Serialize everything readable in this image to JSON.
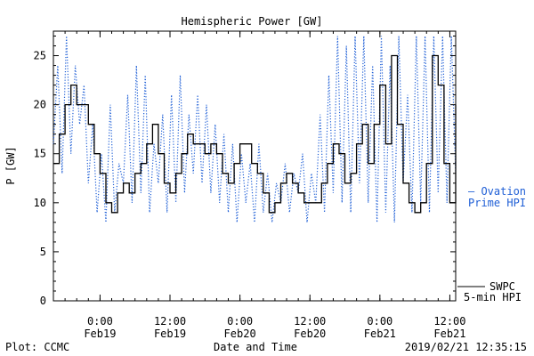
{
  "chart_data": {
    "type": "line",
    "title": "Hemispheric Power [GW]",
    "xlabel": "Date and Time",
    "ylabel": "P [GW]",
    "ylim": [
      0,
      27.5
    ],
    "yticks": [
      0,
      5,
      10,
      15,
      20,
      25
    ],
    "xlim": [
      "2019-02-18T16:00",
      "2019-02-21T13:00"
    ],
    "xticks": [
      {
        "x": "2019-02-19T00:00",
        "line1": "0:00",
        "line2": "Feb19"
      },
      {
        "x": "2019-02-19T12:00",
        "line1": "12:00",
        "line2": "Feb19"
      },
      {
        "x": "2019-02-20T00:00",
        "line1": "0:00",
        "line2": "Feb20"
      },
      {
        "x": "2019-02-20T12:00",
        "line1": "12:00",
        "line2": "Feb20"
      },
      {
        "x": "2019-02-21T00:00",
        "line1": "0:00",
        "line2": "Feb21"
      },
      {
        "x": "2019-02-21T12:00",
        "line1": "12:00",
        "line2": "Feb21"
      }
    ],
    "grid": false,
    "legend_position": "right",
    "series": [
      {
        "name": "SWPC 5-min HPI",
        "legend_line1": "SWPC",
        "legend_line2": "5-min HPI",
        "color": "#000000",
        "style": "solid",
        "points": [
          [
            "2019-02-18T16:00",
            14
          ],
          [
            "2019-02-18T17:00",
            17
          ],
          [
            "2019-02-18T18:00",
            20
          ],
          [
            "2019-02-18T19:00",
            22
          ],
          [
            "2019-02-18T20:00",
            20
          ],
          [
            "2019-02-18T21:00",
            20
          ],
          [
            "2019-02-18T22:00",
            18
          ],
          [
            "2019-02-18T23:00",
            15
          ],
          [
            "2019-02-19T00:00",
            13
          ],
          [
            "2019-02-19T01:00",
            10
          ],
          [
            "2019-02-19T02:00",
            9
          ],
          [
            "2019-02-19T03:00",
            11
          ],
          [
            "2019-02-19T04:00",
            12
          ],
          [
            "2019-02-19T05:00",
            11
          ],
          [
            "2019-02-19T06:00",
            13
          ],
          [
            "2019-02-19T07:00",
            14
          ],
          [
            "2019-02-19T08:00",
            16
          ],
          [
            "2019-02-19T09:00",
            18
          ],
          [
            "2019-02-19T10:00",
            15
          ],
          [
            "2019-02-19T11:00",
            12
          ],
          [
            "2019-02-19T12:00",
            11
          ],
          [
            "2019-02-19T13:00",
            13
          ],
          [
            "2019-02-19T14:00",
            15
          ],
          [
            "2019-02-19T15:00",
            17
          ],
          [
            "2019-02-19T16:00",
            16
          ],
          [
            "2019-02-19T17:00",
            16
          ],
          [
            "2019-02-19T18:00",
            15
          ],
          [
            "2019-02-19T19:00",
            16
          ],
          [
            "2019-02-19T20:00",
            15
          ],
          [
            "2019-02-19T21:00",
            13
          ],
          [
            "2019-02-19T22:00",
            12
          ],
          [
            "2019-02-19T23:00",
            14
          ],
          [
            "2019-02-20T00:00",
            16
          ],
          [
            "2019-02-20T01:00",
            16
          ],
          [
            "2019-02-20T02:00",
            14
          ],
          [
            "2019-02-20T03:00",
            13
          ],
          [
            "2019-02-20T04:00",
            11
          ],
          [
            "2019-02-20T05:00",
            9
          ],
          [
            "2019-02-20T06:00",
            10
          ],
          [
            "2019-02-20T07:00",
            12
          ],
          [
            "2019-02-20T08:00",
            13
          ],
          [
            "2019-02-20T09:00",
            12
          ],
          [
            "2019-02-20T10:00",
            11
          ],
          [
            "2019-02-20T11:00",
            10
          ],
          [
            "2019-02-20T12:00",
            10
          ],
          [
            "2019-02-20T13:00",
            10
          ],
          [
            "2019-02-20T14:00",
            12
          ],
          [
            "2019-02-20T15:00",
            14
          ],
          [
            "2019-02-20T16:00",
            16
          ],
          [
            "2019-02-20T17:00",
            15
          ],
          [
            "2019-02-20T18:00",
            12
          ],
          [
            "2019-02-20T19:00",
            13
          ],
          [
            "2019-02-20T20:00",
            16
          ],
          [
            "2019-02-20T21:00",
            18
          ],
          [
            "2019-02-20T22:00",
            14
          ],
          [
            "2019-02-20T23:00",
            18
          ],
          [
            "2019-02-21T00:00",
            22
          ],
          [
            "2019-02-21T01:00",
            16
          ],
          [
            "2019-02-21T02:00",
            25
          ],
          [
            "2019-02-21T03:00",
            18
          ],
          [
            "2019-02-21T04:00",
            12
          ],
          [
            "2019-02-21T05:00",
            10
          ],
          [
            "2019-02-21T06:00",
            9
          ],
          [
            "2019-02-21T07:00",
            10
          ],
          [
            "2019-02-21T08:00",
            14
          ],
          [
            "2019-02-21T09:00",
            25
          ],
          [
            "2019-02-21T10:00",
            22
          ],
          [
            "2019-02-21T11:00",
            14
          ],
          [
            "2019-02-21T12:00",
            10
          ],
          [
            "2019-02-21T13:00",
            20
          ]
        ]
      },
      {
        "name": "Ovation Prime HPI",
        "legend_line1": "— Ovation",
        "legend_line2": "Prime HPI",
        "color": "#1f5fd6",
        "style": "dotted",
        "points": [
          [
            "2019-02-18T16:00",
            16
          ],
          [
            "2019-02-18T16:45",
            24
          ],
          [
            "2019-02-18T17:30",
            13
          ],
          [
            "2019-02-18T18:15",
            27
          ],
          [
            "2019-02-18T19:00",
            15
          ],
          [
            "2019-02-18T19:45",
            24
          ],
          [
            "2019-02-18T20:30",
            18
          ],
          [
            "2019-02-18T21:15",
            22
          ],
          [
            "2019-02-18T22:00",
            12
          ],
          [
            "2019-02-18T22:45",
            18
          ],
          [
            "2019-02-18T23:30",
            9
          ],
          [
            "2019-02-19T00:15",
            15
          ],
          [
            "2019-02-19T01:00",
            8
          ],
          [
            "2019-02-19T01:45",
            20
          ],
          [
            "2019-02-19T02:30",
            9
          ],
          [
            "2019-02-19T03:15",
            14
          ],
          [
            "2019-02-19T04:00",
            12
          ],
          [
            "2019-02-19T04:45",
            21
          ],
          [
            "2019-02-19T05:30",
            10
          ],
          [
            "2019-02-19T06:15",
            24
          ],
          [
            "2019-02-19T07:00",
            11
          ],
          [
            "2019-02-19T07:45",
            23
          ],
          [
            "2019-02-19T08:30",
            9
          ],
          [
            "2019-02-19T09:15",
            16
          ],
          [
            "2019-02-19T10:00",
            12
          ],
          [
            "2019-02-19T10:45",
            19
          ],
          [
            "2019-02-19T11:30",
            9
          ],
          [
            "2019-02-19T12:15",
            21
          ],
          [
            "2019-02-19T13:00",
            10
          ],
          [
            "2019-02-19T13:45",
            23
          ],
          [
            "2019-02-19T14:30",
            11
          ],
          [
            "2019-02-19T15:15",
            19
          ],
          [
            "2019-02-19T16:00",
            13
          ],
          [
            "2019-02-19T16:45",
            21
          ],
          [
            "2019-02-19T17:30",
            12
          ],
          [
            "2019-02-19T18:15",
            20
          ],
          [
            "2019-02-19T19:00",
            11
          ],
          [
            "2019-02-19T19:45",
            18
          ],
          [
            "2019-02-19T20:30",
            10
          ],
          [
            "2019-02-19T21:15",
            17
          ],
          [
            "2019-02-19T22:00",
            9
          ],
          [
            "2019-02-19T22:45",
            16
          ],
          [
            "2019-02-19T23:30",
            8
          ],
          [
            "2019-02-20T00:15",
            15
          ],
          [
            "2019-02-20T01:00",
            10
          ],
          [
            "2019-02-20T01:45",
            14
          ],
          [
            "2019-02-20T02:30",
            8
          ],
          [
            "2019-02-20T03:15",
            16
          ],
          [
            "2019-02-20T04:00",
            9
          ],
          [
            "2019-02-20T04:45",
            13
          ],
          [
            "2019-02-20T05:30",
            8
          ],
          [
            "2019-02-20T06:15",
            12
          ],
          [
            "2019-02-20T07:00",
            10
          ],
          [
            "2019-02-20T07:45",
            14
          ],
          [
            "2019-02-20T08:30",
            9
          ],
          [
            "2019-02-20T09:15",
            13
          ],
          [
            "2019-02-20T10:00",
            11
          ],
          [
            "2019-02-20T10:45",
            15
          ],
          [
            "2019-02-20T11:30",
            8
          ],
          [
            "2019-02-20T12:15",
            13
          ],
          [
            "2019-02-20T13:00",
            10
          ],
          [
            "2019-02-20T13:45",
            19
          ],
          [
            "2019-02-20T14:30",
            9
          ],
          [
            "2019-02-20T15:15",
            23
          ],
          [
            "2019-02-20T16:00",
            11
          ],
          [
            "2019-02-20T16:45",
            27
          ],
          [
            "2019-02-20T17:30",
            10
          ],
          [
            "2019-02-20T18:15",
            26
          ],
          [
            "2019-02-20T19:00",
            9
          ],
          [
            "2019-02-20T19:45",
            27
          ],
          [
            "2019-02-20T20:30",
            12
          ],
          [
            "2019-02-20T21:15",
            27
          ],
          [
            "2019-02-20T22:00",
            10
          ],
          [
            "2019-02-20T22:45",
            24
          ],
          [
            "2019-02-20T23:30",
            8
          ],
          [
            "2019-02-21T00:15",
            27
          ],
          [
            "2019-02-21T01:00",
            9
          ],
          [
            "2019-02-21T01:45",
            24
          ],
          [
            "2019-02-21T02:30",
            8
          ],
          [
            "2019-02-21T03:15",
            27
          ],
          [
            "2019-02-21T04:00",
            12
          ],
          [
            "2019-02-21T04:45",
            21
          ],
          [
            "2019-02-21T05:30",
            9
          ],
          [
            "2019-02-21T06:15",
            27
          ],
          [
            "2019-02-21T07:00",
            10
          ],
          [
            "2019-02-21T07:45",
            27
          ],
          [
            "2019-02-21T08:30",
            9
          ],
          [
            "2019-02-21T09:15",
            27
          ],
          [
            "2019-02-21T10:00",
            11
          ],
          [
            "2019-02-21T10:45",
            27
          ],
          [
            "2019-02-21T11:30",
            10
          ],
          [
            "2019-02-21T12:15",
            27
          ],
          [
            "2019-02-21T13:00",
            13
          ]
        ]
      }
    ]
  },
  "footer": {
    "left": "Plot: CCMC",
    "right": "2019/02/21 12:35:15"
  }
}
